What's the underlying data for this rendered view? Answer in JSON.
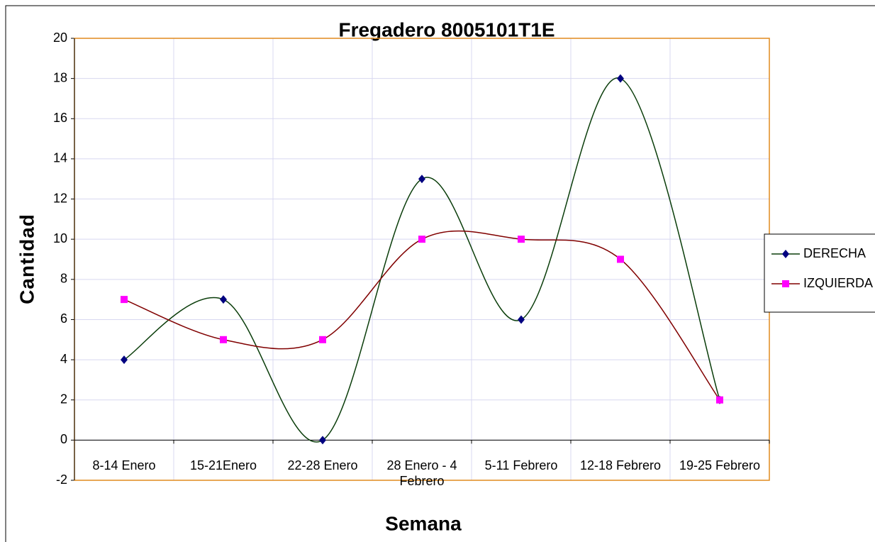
{
  "chart_data": {
    "type": "line",
    "smooth": true,
    "title": "Fregadero 8005101T1E",
    "x_label": "Semana",
    "y_label": "Cantidad",
    "categories": [
      "8-14 Enero",
      "15-21Enero",
      "22-28 Enero",
      "28 Enero - 4 Febrero",
      "5-11 Febrero",
      "12-18 Febrero",
      "19-25 Febrero"
    ],
    "series": [
      {
        "name": "DERECHA",
        "color": "#0a3d0a",
        "marker_color": "#000080",
        "marker": "diamond",
        "values": [
          4,
          7,
          0,
          13,
          6,
          18,
          2
        ]
      },
      {
        "name": "IZQUIERDA",
        "color": "#800000",
        "marker_color": "#ff00ff",
        "marker": "square",
        "values": [
          7,
          5,
          5,
          10,
          10,
          9,
          2
        ]
      }
    ],
    "ylim": [
      -2,
      20
    ],
    "yticks": [
      -2,
      0,
      2,
      4,
      6,
      8,
      10,
      12,
      14,
      16,
      18,
      20
    ],
    "grid": true,
    "legend": "right"
  }
}
